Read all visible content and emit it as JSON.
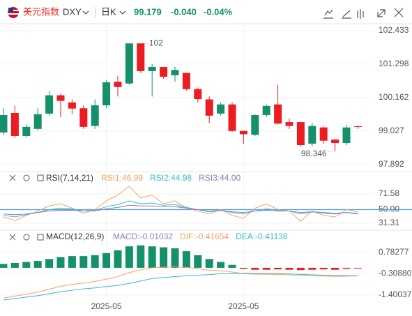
{
  "header": {
    "name": "美元指数",
    "symbol": "DXY",
    "period": "日K",
    "price": "99.179",
    "change": "-0.040",
    "change_pct": "-0.04%"
  },
  "chart_data": [
    {
      "type": "candlestick",
      "categories": [
        null,
        null,
        null,
        null,
        null,
        null,
        null,
        null,
        null,
        "2025-05",
        null,
        null,
        null,
        null,
        null,
        null,
        null,
        null,
        null,
        null,
        null,
        "2025-05",
        null,
        null,
        null,
        null,
        null,
        null,
        null,
        null,
        null,
        null
      ],
      "open": [
        98.98,
        99.64,
        98.86,
        99.1,
        99.62,
        100.24,
        100.0,
        99.8,
        99.2,
        99.9,
        100.7,
        100.64,
        102.0,
        101.06,
        101.2,
        100.92,
        101.0,
        100.45,
        100.1,
        99.62,
        99.93,
        99.03,
        98.9,
        99.57,
        99.93,
        99.33,
        99.33,
        98.6,
        99.15,
        98.74,
        98.62,
        99.19
      ],
      "high": [
        99.8,
        99.9,
        99.25,
        99.8,
        100.4,
        100.3,
        100.1,
        99.9,
        100.1,
        100.75,
        100.9,
        101.979,
        102.0,
        101.3,
        101.2,
        101.2,
        101.0,
        100.5,
        100.2,
        100.0,
        100.0,
        99.0,
        99.6,
        99.93,
        100.6,
        99.45,
        99.35,
        99.3,
        99.2,
        98.75,
        99.25,
        99.22
      ],
      "low": [
        98.9,
        98.8,
        98.8,
        99.05,
        99.55,
        99.5,
        99.6,
        99.1,
        99.1,
        99.8,
        100.2,
        100.6,
        101.0,
        100.2,
        100.8,
        100.7,
        100.4,
        100.0,
        99.3,
        99.55,
        99.0,
        98.6,
        98.85,
        99.5,
        99.25,
        99.1,
        98.5,
        98.5,
        98.6,
        98.346,
        98.55,
        99.1
      ],
      "close": [
        99.57,
        98.86,
        99.17,
        99.6,
        100.24,
        100.05,
        99.79,
        99.17,
        99.9,
        100.68,
        100.52,
        102.0,
        101.06,
        101.2,
        100.87,
        101.1,
        100.45,
        100.11,
        99.55,
        99.93,
        99.03,
        98.92,
        99.57,
        99.88,
        99.28,
        99.2,
        98.55,
        99.2,
        98.7,
        98.62,
        99.15,
        99.179
      ],
      "up_color": "#14906a",
      "down_color": "#eb1d22",
      "ylim": [
        97.7,
        102.62
      ],
      "yticks": [
        97.892,
        99.027,
        100.162,
        101.298,
        102.433
      ]
    },
    {
      "type": "line",
      "title": "RSI(7,14,21)",
      "series": [
        {
          "name": "RSI1:46.99",
          "color": "#f5a35c",
          "values": [
            40,
            35,
            42,
            48,
            55,
            58,
            52,
            45,
            50,
            62,
            70,
            82,
            66,
            70,
            58,
            62,
            52,
            48,
            44,
            50,
            42,
            38,
            52,
            58,
            50,
            48,
            34,
            48,
            42,
            40,
            50,
            46.99
          ]
        },
        {
          "name": "RSI2:44.98",
          "color": "#37b8d0",
          "values": [
            42,
            40,
            43,
            46,
            50,
            52,
            51,
            48,
            49,
            54,
            57,
            62,
            58,
            59,
            56,
            57,
            53,
            50,
            47,
            49,
            46,
            44,
            48,
            51,
            49,
            48,
            44,
            47,
            45,
            44,
            46,
            44.98
          ]
        },
        {
          "name": "RSI3:44.00",
          "color": "#8f7cc4",
          "values": [
            44,
            43,
            44,
            46,
            48,
            49,
            49,
            48,
            48,
            51,
            53,
            56,
            55,
            55,
            54,
            54,
            52,
            50,
            48,
            49,
            47,
            46,
            48,
            49,
            48,
            48,
            46,
            47,
            46,
            45,
            46,
            44.0
          ]
        }
      ],
      "reference_line": 50,
      "reference_color": "#4a9be8",
      "ylim": [
        23.6,
        86.9
      ],
      "yticks": [
        31.31,
        {
          "value": 50,
          "label": "50.00"
        },
        71.58
      ]
    },
    {
      "type": "macd",
      "title": "MACD(12,26,9)",
      "series": [
        {
          "name": "MACD:-0.01032",
          "color": "#8f7cc4",
          "up_color": "#14906a",
          "down_color": "#eb1d22",
          "values": [
            0.2,
            0.25,
            0.3,
            0.35,
            0.45,
            0.55,
            0.6,
            0.6,
            0.65,
            0.75,
            0.9,
            1.1,
            1.15,
            1.1,
            1.05,
            1.0,
            0.85,
            0.65,
            0.45,
            0.3,
            0.15,
            -0.05,
            -0.1,
            -0.1,
            -0.08,
            -0.1,
            -0.12,
            -0.1,
            -0.08,
            -0.1,
            -0.05,
            -0.01032
          ]
        },
        {
          "name": "DIF:-0.41654",
          "color": "#f5a35c",
          "values": [
            -1.55,
            -1.45,
            -1.35,
            -1.25,
            -1.1,
            -0.95,
            -0.85,
            -0.78,
            -0.7,
            -0.58,
            -0.45,
            -0.25,
            -0.1,
            0.0,
            0.03,
            0.05,
            0.02,
            -0.05,
            -0.12,
            -0.15,
            -0.22,
            -0.3,
            -0.33,
            -0.33,
            -0.34,
            -0.36,
            -0.4,
            -0.41,
            -0.42,
            -0.44,
            -0.43,
            -0.41654
          ]
        },
        {
          "name": "DEA:-0.41138",
          "color": "#37b8d0",
          "values": [
            -1.65,
            -1.58,
            -1.5,
            -1.43,
            -1.33,
            -1.23,
            -1.15,
            -1.08,
            -1.03,
            -0.96,
            -0.9,
            -0.8,
            -0.68,
            -0.55,
            -0.5,
            -0.45,
            -0.41,
            -0.38,
            -0.35,
            -0.3,
            -0.3,
            -0.28,
            -0.28,
            -0.28,
            -0.3,
            -0.31,
            -0.34,
            -0.36,
            -0.38,
            -0.39,
            -0.4,
            -0.41138
          ]
        }
      ],
      "ylim": [
        -1.72,
        1.57
      ],
      "yticks": [
        -1.40037,
        {
          "value": -0.3088,
          "label": "-0.30880"
        },
        0.78277
      ]
    }
  ]
}
